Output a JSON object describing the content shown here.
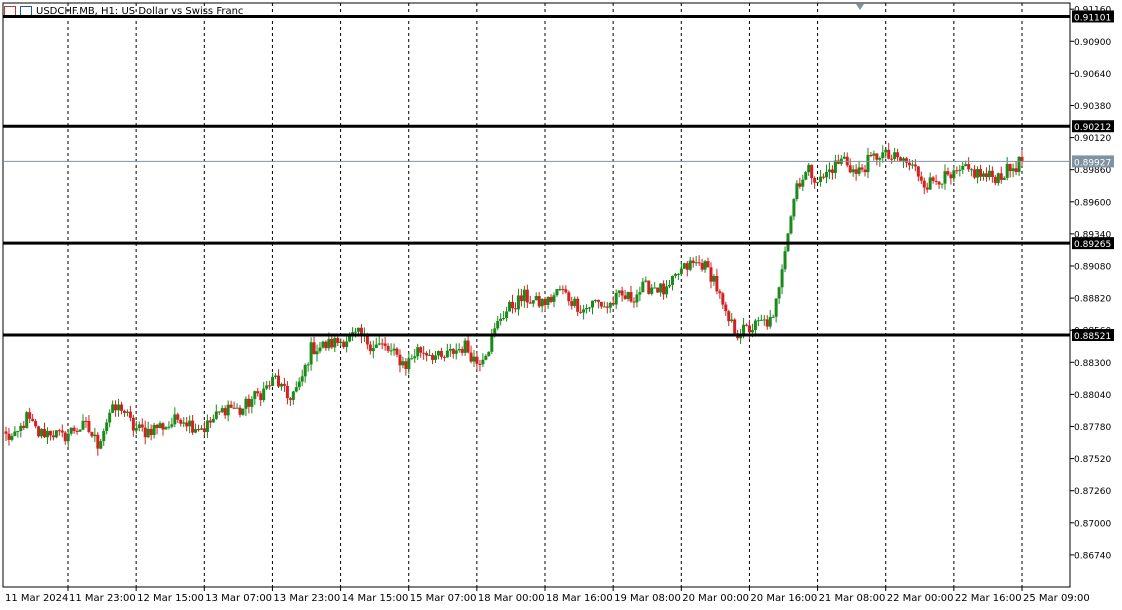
{
  "header": {
    "title": "USDCHF.MB, H1: US Dollar vs Swiss Franc"
  },
  "chart_data": {
    "type": "candlestick",
    "symbol": "USDCHF.MB",
    "timeframe": "H1",
    "title": "USDCHF.MB, H1: US Dollar vs Swiss Franc",
    "ylim": [
      0.8648,
      0.9121
    ],
    "ytick_labels": [
      "0.91160",
      "0.90900",
      "0.90640",
      "0.90380",
      "0.90120",
      "0.89860",
      "0.89600",
      "0.89340",
      "0.89080",
      "0.88820",
      "0.88560",
      "0.88300",
      "0.88040",
      "0.87780",
      "0.87520",
      "0.87260",
      "0.87000",
      "0.86740"
    ],
    "xtick_labels": [
      "11 Mar 2024",
      "11 Mar 23:00",
      "12 Mar 15:00",
      "13 Mar 07:00",
      "13 Mar 23:00",
      "14 Mar 15:00",
      "15 Mar 07:00",
      "18 Mar 00:00",
      "18 Mar 16:00",
      "19 Mar 08:00",
      "20 Mar 00:00",
      "20 Mar 16:00",
      "21 Mar 08:00",
      "22 Mar 00:00",
      "22 Mar 16:00",
      "25 Mar 09:00"
    ],
    "horizontal_levels": [
      {
        "value": 0.91101,
        "label": "0.91101"
      },
      {
        "value": 0.90212,
        "label": "0.90212"
      },
      {
        "value": 0.89265,
        "label": "0.89265"
      },
      {
        "value": 0.88521,
        "label": "0.88521"
      }
    ],
    "current_price": {
      "value": 0.89927,
      "label": "0.89927"
    },
    "bullish_color": "#1a8a1a",
    "bearish_color": "#d42020",
    "grid": "vertical-dashed",
    "anchor_closes": [
      0.8771,
      0.8768,
      0.8785,
      0.8772,
      0.8774,
      0.8769,
      0.8776,
      0.8778,
      0.8764,
      0.8789,
      0.8794,
      0.8777,
      0.8774,
      0.8778,
      0.8779,
      0.8786,
      0.8779,
      0.8777,
      0.8786,
      0.8795,
      0.879,
      0.88,
      0.8807,
      0.8817,
      0.8801,
      0.881,
      0.8841,
      0.8843,
      0.8846,
      0.8849,
      0.8852,
      0.8845,
      0.8843,
      0.8836,
      0.8828,
      0.884,
      0.8838,
      0.8832,
      0.8839,
      0.8843,
      0.883,
      0.8843,
      0.8867,
      0.8876,
      0.8883,
      0.8878,
      0.8879,
      0.8889,
      0.888,
      0.8873,
      0.8879,
      0.8875,
      0.8883,
      0.8882,
      0.889,
      0.8892,
      0.8886,
      0.8902,
      0.8909,
      0.891,
      0.8898,
      0.8866,
      0.8854,
      0.8857,
      0.8862,
      0.8863,
      0.8925,
      0.8975,
      0.8985,
      0.8977,
      0.8988,
      0.8995,
      0.8982,
      0.8992,
      0.8999,
      0.8995,
      0.8993,
      0.8986,
      0.8974,
      0.898,
      0.8978,
      0.8985,
      0.8984,
      0.898,
      0.8981,
      0.8986,
      0.8993
    ]
  }
}
